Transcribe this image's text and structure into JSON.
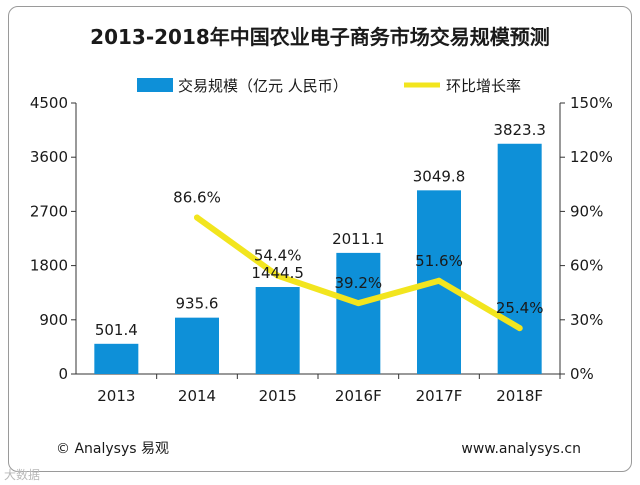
{
  "chart_data": {
    "type": "bar",
    "title": "2013-2018年中国农业电子商务市场交易规模预测",
    "categories": [
      "2013",
      "2014",
      "2015",
      "2016F",
      "2017F",
      "2018F"
    ],
    "series": [
      {
        "name": "交易规模（亿元 人民币）",
        "type": "bar",
        "axis": "left",
        "color": "#0e90d8",
        "values": [
          501.4,
          935.6,
          1444.5,
          2011.1,
          3049.8,
          3823.3
        ],
        "labels": [
          "501.4",
          "935.6",
          "1444.5",
          "2011.1",
          "3049.8",
          "3823.3"
        ]
      },
      {
        "name": "环比增长率",
        "type": "line",
        "axis": "right",
        "color": "#f2e51e",
        "values": [
          null,
          86.6,
          54.4,
          39.2,
          51.6,
          25.4
        ],
        "labels": [
          "",
          "86.6%",
          "54.4%",
          "39.2%",
          "51.6%",
          "25.4%"
        ]
      }
    ],
    "ylim_left": [
      0,
      4500
    ],
    "yticks_left": [
      "0",
      "900",
      "1800",
      "2700",
      "3600",
      "4500"
    ],
    "ylim_right": [
      0,
      150
    ],
    "yticks_right": [
      "0%",
      "30%",
      "60%",
      "90%",
      "120%",
      "150%"
    ],
    "legend_position": "top",
    "grid": false
  },
  "footer": {
    "left": "© Analysys 易观",
    "right": "www.analysys.cn"
  },
  "watermark": {
    "corner": "大数据"
  }
}
